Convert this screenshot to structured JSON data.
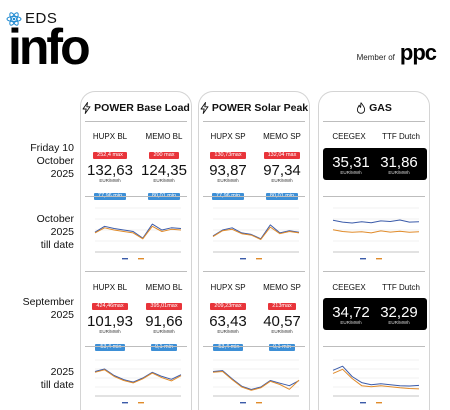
{
  "brand": {
    "eds": "EDS",
    "info": "info",
    "member_of": "Member of",
    "ppc": "ppc",
    "atom_icon": "atom-icon"
  },
  "row_labels": {
    "day": "Friday 10\nOctober\n2025",
    "month_to_date": "October\n2025\ntill date",
    "prev_month": "September\n2025",
    "year_to_date": "2025\ntill date"
  },
  "colors": {
    "red": "#e8343a",
    "blue": "#3d8fd6",
    "hupx_line": "#3b5ba9",
    "memo_line": "#e08b2a",
    "black_box": "#000000"
  },
  "panels": {
    "base": {
      "title": "POWER Base Load",
      "icon": "lightning-icon",
      "day": [
        {
          "head": "HUPX BL",
          "max": "252,4 max",
          "value": "132,63",
          "unit": "EUR/MWh",
          "min": "77,96 min"
        },
        {
          "head": "MEMO BL",
          "max": "200 max",
          "value": "124,35",
          "unit": "EUR/MWh",
          "min": "80,01 min"
        }
      ],
      "month": [
        {
          "head": "HUPX BL",
          "max": "424,46max",
          "value": "101,93",
          "unit": "EUR/MWh",
          "min": "-53,4 min"
        },
        {
          "head": "MEMO BL",
          "max": "395,01max",
          "value": "91,66",
          "unit": "EUR/MWh",
          "min": "0,1 min"
        }
      ]
    },
    "solar": {
      "title": "POWER Solar Peak",
      "icon": "lightning-icon",
      "day": [
        {
          "head": "HUPX SP",
          "max": "130,73max",
          "value": "93,87",
          "unit": "EUR/MWh",
          "min": "77,96 min"
        },
        {
          "head": "MEMO SP",
          "max": "132,04 max",
          "value": "97,34",
          "unit": "EUR/MWh",
          "min": "80,01 min"
        }
      ],
      "month": [
        {
          "head": "HUPX SP",
          "max": "209,23max",
          "value": "63,43",
          "unit": "EUR/MWh",
          "min": "-53,4 min"
        },
        {
          "head": "MEMO SP",
          "max": "213max",
          "value": "40,57",
          "unit": "EUR/MWh",
          "min": "0,1 min"
        }
      ]
    },
    "gas": {
      "title": "GAS",
      "icon": "flame-icon",
      "day": [
        {
          "head": "CEEGEX",
          "value": "35,31",
          "unit": "EUR/MWh"
        },
        {
          "head": "TTF Dutch",
          "value": "31,86",
          "unit": "EUR/MWh"
        }
      ],
      "month": [
        {
          "head": "CEEGEX",
          "value": "34,72",
          "unit": "EUR/MWh"
        },
        {
          "head": "TTF Dutch",
          "value": "32,29",
          "unit": "EUR/MWh"
        }
      ]
    }
  },
  "chart_data": [
    {
      "id": "base-october",
      "type": "line",
      "x": [
        1,
        2,
        3,
        4,
        5,
        6,
        7,
        8,
        9,
        10
      ],
      "ylim": [
        0,
        300
      ],
      "series": [
        {
          "color": "#3b5ba9",
          "values": [
            135,
            175,
            160,
            150,
            140,
            95,
            190,
            150,
            165,
            160
          ]
        },
        {
          "color": "#e08b2a",
          "values": [
            130,
            165,
            150,
            140,
            130,
            90,
            175,
            140,
            155,
            150
          ]
        }
      ]
    },
    {
      "id": "solar-october",
      "type": "line",
      "x": [
        1,
        2,
        3,
        4,
        5,
        6,
        7,
        8,
        9,
        10
      ],
      "ylim": [
        0,
        300
      ],
      "series": [
        {
          "color": "#3b5ba9",
          "values": [
            110,
            150,
            165,
            130,
            120,
            90,
            185,
            130,
            145,
            135
          ]
        },
        {
          "color": "#e08b2a",
          "values": [
            105,
            145,
            155,
            125,
            115,
            85,
            170,
            125,
            140,
            130
          ]
        }
      ]
    },
    {
      "id": "gas-october",
      "type": "line",
      "x": [
        1,
        2,
        3,
        4,
        5,
        6,
        7,
        8,
        9,
        10
      ],
      "ylim": [
        25,
        40
      ],
      "series": [
        {
          "color": "#3b5ba9",
          "values": [
            35.8,
            35.2,
            34.9,
            35.3,
            35.0,
            35.6,
            35.4,
            35.9,
            35.2,
            35.3
          ]
        },
        {
          "color": "#e08b2a",
          "values": [
            32.6,
            32.0,
            31.7,
            31.9,
            31.5,
            32.2,
            31.8,
            32.1,
            31.7,
            31.9
          ]
        }
      ]
    },
    {
      "id": "base-year",
      "type": "line",
      "x": [
        1,
        2,
        3,
        4,
        5,
        6,
        7,
        8,
        9,
        10
      ],
      "ylim": [
        0,
        220
      ],
      "series": [
        {
          "color": "#3b5ba9",
          "values": [
            150,
            165,
            125,
            100,
            85,
            110,
            145,
            120,
            102,
            130
          ]
        },
        {
          "color": "#e08b2a",
          "values": [
            145,
            160,
            120,
            95,
            80,
            105,
            140,
            112,
            92,
            124
          ]
        }
      ]
    },
    {
      "id": "solar-year",
      "type": "line",
      "x": [
        1,
        2,
        3,
        4,
        5,
        6,
        7,
        8,
        9,
        10
      ],
      "ylim": [
        0,
        220
      ],
      "series": [
        {
          "color": "#3b5ba9",
          "values": [
            150,
            155,
            105,
            60,
            40,
            55,
            95,
            78,
            63,
            94
          ]
        },
        {
          "color": "#e08b2a",
          "values": [
            145,
            150,
            100,
            55,
            35,
            50,
            90,
            70,
            41,
            97
          ]
        }
      ]
    },
    {
      "id": "gas-year",
      "type": "line",
      "x": [
        1,
        2,
        3,
        4,
        5,
        6,
        7,
        8,
        9,
        10
      ],
      "ylim": [
        25,
        60
      ],
      "series": [
        {
          "color": "#3b5ba9",
          "values": [
            50,
            54,
            44,
            38,
            36,
            37,
            36,
            35,
            34.7,
            35.3
          ]
        },
        {
          "color": "#e08b2a",
          "values": [
            47,
            51,
            42,
            35,
            34,
            35,
            34,
            33,
            32.3,
            31.9
          ]
        }
      ]
    }
  ]
}
